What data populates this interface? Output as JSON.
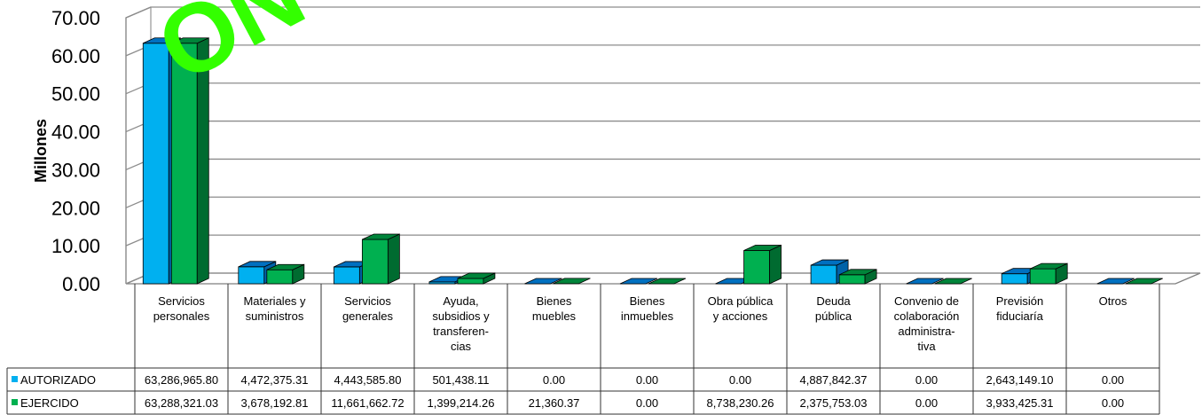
{
  "chart_data": {
    "type": "bar",
    "ylabel": "Millones",
    "ylim": [
      0,
      70
    ],
    "yticks": [
      "0.00",
      "10.00",
      "20.00",
      "30.00",
      "40.00",
      "50.00",
      "60.00",
      "70.00"
    ],
    "grid": true,
    "legend": "table-rows",
    "categories": [
      [
        "Servicios",
        "personales"
      ],
      [
        "Materiales y",
        "suministros"
      ],
      [
        "Servicios",
        "generales"
      ],
      [
        "Ayuda,",
        "subsidios y",
        "transferen-",
        "cias"
      ],
      [
        "Bienes",
        "muebles"
      ],
      [
        "Bienes",
        "inmuebles"
      ],
      [
        "Obra pública",
        "y acciones"
      ],
      [
        "Deuda",
        "pública"
      ],
      [
        "Convenio de",
        "colaboración",
        "administra-",
        "tiva"
      ],
      [
        "Previsión",
        "fiduciaría"
      ],
      [
        "Otros"
      ]
    ],
    "series": [
      {
        "name": "AUTORIZADO",
        "color": "#00b0f0",
        "values": [
          63.2869658,
          4.47237531,
          4.4435858,
          0.50143811,
          0,
          0,
          0,
          4.88784237,
          0,
          2.6431491,
          0
        ],
        "labels": [
          "63,286,965.80",
          "4,472,375.31",
          "4,443,585.80",
          "501,438.11",
          "0.00",
          "0.00",
          "0.00",
          "4,887,842.37",
          "0.00",
          "2,643,149.10",
          "0.00"
        ]
      },
      {
        "name": "EJERCIDO",
        "color": "#00b050",
        "values": [
          63.28832103,
          3.67819281,
          11.66166272,
          1.39921426,
          0.02136037,
          0,
          8.73823026,
          2.37575303,
          0,
          3.93342531,
          0
        ],
        "labels": [
          "63,288,321.03",
          "3,678,192.81",
          "11,661,662.72",
          "1,399,214.26",
          "21,360.37",
          "0.00",
          "8,738,230.26",
          "2,375,753.03",
          "0.00",
          "3,933,425.31",
          "0.00"
        ]
      }
    ]
  }
}
